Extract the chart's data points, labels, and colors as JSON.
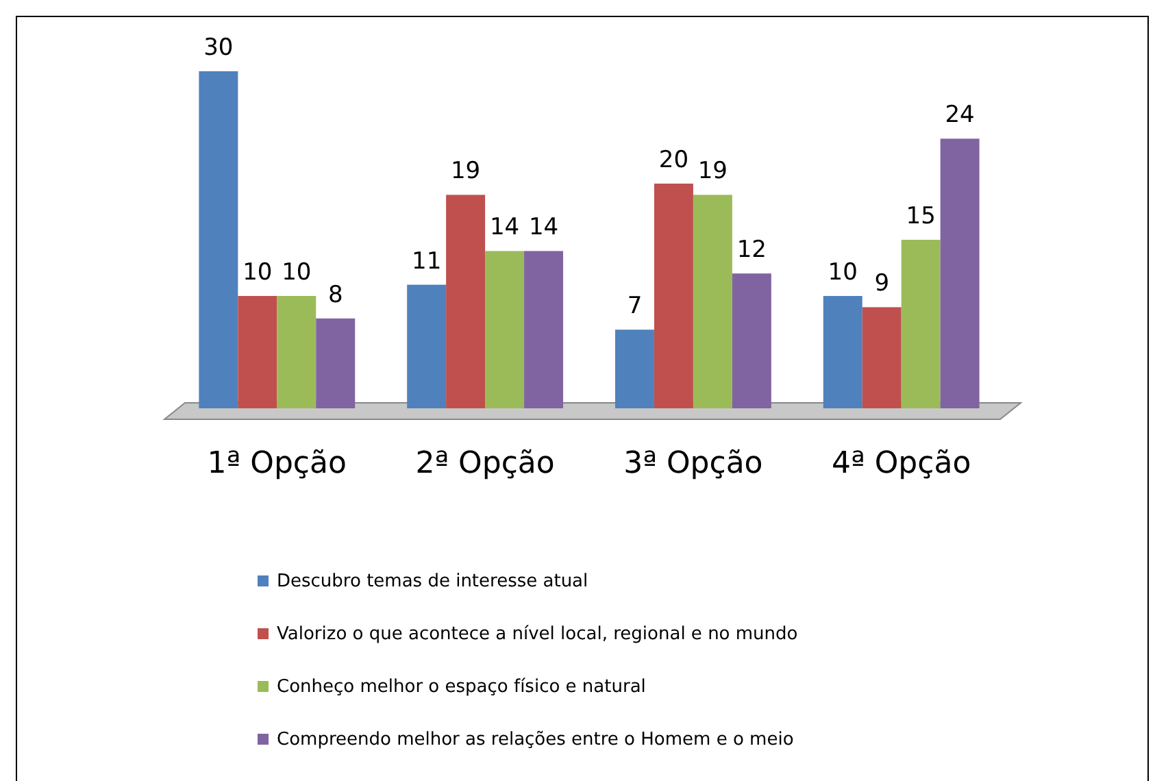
{
  "chart_data": {
    "type": "bar",
    "categories": [
      "1ª Opção",
      "2ª Opção",
      "3ª Opção",
      "4ª Opção"
    ],
    "series": [
      {
        "name": "Descubro temas de interesse atual",
        "color": "#4f81bd",
        "values": [
          30,
          11,
          7,
          10
        ]
      },
      {
        "name": "Valorizo o que acontece a nível local, regional e no mundo",
        "color": "#c0504d",
        "values": [
          10,
          19,
          20,
          9
        ]
      },
      {
        "name": "Conheço melhor o espaço físico e natural",
        "color": "#9bbb59",
        "values": [
          10,
          14,
          19,
          15
        ]
      },
      {
        "name": "Compreendo melhor as relações entre o Homem e o meio",
        "color": "#8064a2",
        "values": [
          8,
          14,
          12,
          24
        ]
      }
    ],
    "data_labels": true,
    "legend": "bottom"
  }
}
